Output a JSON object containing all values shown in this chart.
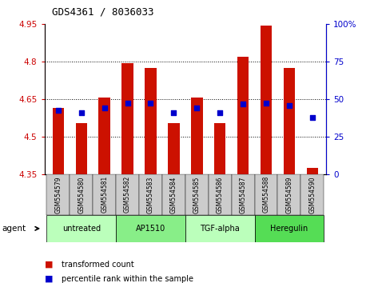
{
  "title": "GDS4361 / 8036033",
  "samples": [
    "GSM554579",
    "GSM554580",
    "GSM554581",
    "GSM554582",
    "GSM554583",
    "GSM554584",
    "GSM554585",
    "GSM554586",
    "GSM554587",
    "GSM554588",
    "GSM554589",
    "GSM554590"
  ],
  "bar_values": [
    4.615,
    4.555,
    4.655,
    4.795,
    4.775,
    4.555,
    4.655,
    4.555,
    4.82,
    4.945,
    4.775,
    4.375
  ],
  "blue_dot_values": [
    4.605,
    4.595,
    4.615,
    4.635,
    4.635,
    4.595,
    4.615,
    4.595,
    4.63,
    4.635,
    4.625,
    4.575
  ],
  "ymin": 4.35,
  "ymax": 4.95,
  "yticks": [
    4.35,
    4.5,
    4.65,
    4.8,
    4.95
  ],
  "ytick_labels": [
    "4.35",
    "4.5",
    "4.65",
    "4.8",
    "4.95"
  ],
  "right_yticks_pct": [
    0,
    25,
    50,
    75,
    100
  ],
  "right_ytick_labels": [
    "0",
    "25",
    "50",
    "75",
    "100%"
  ],
  "gridlines": [
    4.5,
    4.65,
    4.8
  ],
  "bar_color": "#cc1100",
  "dot_color": "#0000cc",
  "agents": [
    {
      "label": "untreated",
      "start": 0,
      "end": 3,
      "color": "#bbffbb"
    },
    {
      "label": "AP1510",
      "start": 3,
      "end": 6,
      "color": "#88ee88"
    },
    {
      "label": "TGF-alpha",
      "start": 6,
      "end": 9,
      "color": "#bbffbb"
    },
    {
      "label": "Heregulin",
      "start": 9,
      "end": 12,
      "color": "#55dd55"
    }
  ],
  "legend_label_count": "transformed count",
  "legend_label_pct": "percentile rank within the sample",
  "agent_label": "agent",
  "bar_color_legend": "#cc1100",
  "dot_color_legend": "#0000cc",
  "right_axis_color": "#0000cc",
  "left_axis_color": "#cc0000",
  "sample_bg_color": "#cccccc",
  "bar_width": 0.5,
  "dot_size": 18
}
